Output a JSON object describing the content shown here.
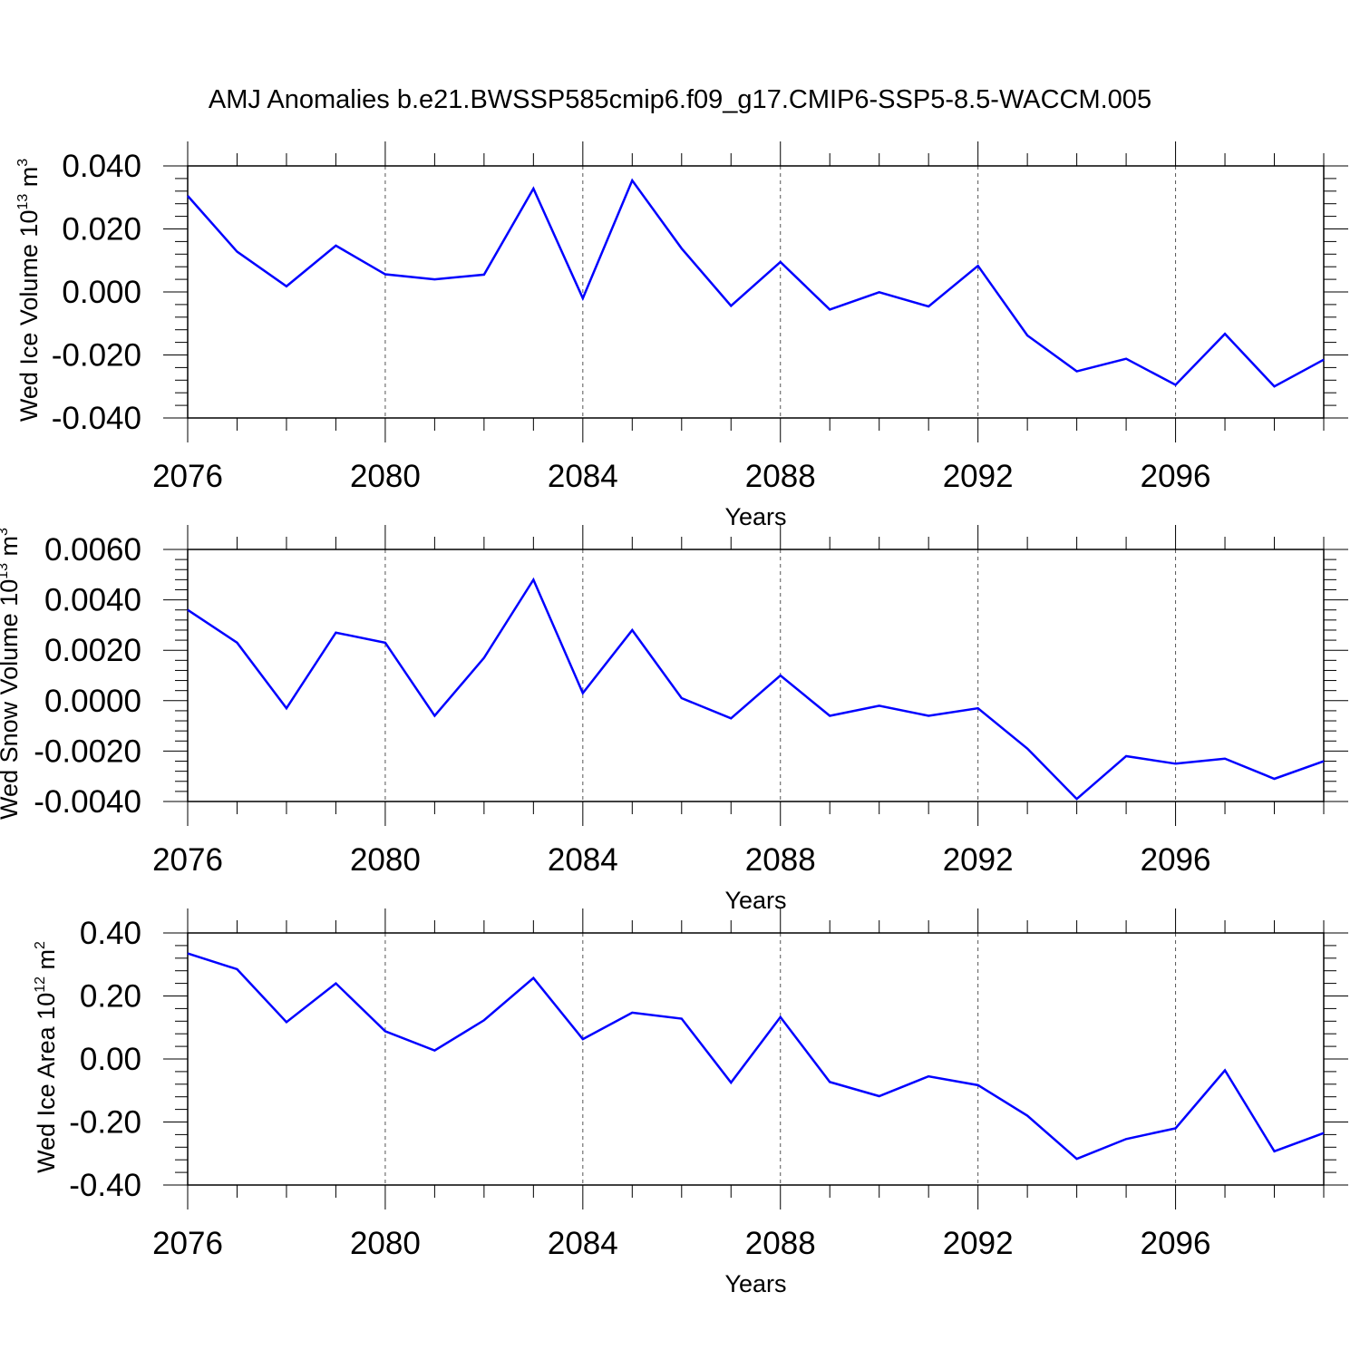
{
  "title": "AMJ Anomalies b.e21.BWSSP585cmip6.f09_g17.CMIP6-SSP5-8.5-WACCM.005",
  "chart_data": [
    {
      "type": "line",
      "xlabel": "Years",
      "ylabel_text": "Wed Ice Volume 10",
      "ylabel_exp": "13",
      "ylabel_unit": " m",
      "ylabel_unit_exp": "3",
      "x": [
        2076,
        2077,
        2078,
        2079,
        2080,
        2081,
        2082,
        2083,
        2084,
        2085,
        2086,
        2087,
        2088,
        2089,
        2090,
        2091,
        2092,
        2093,
        2094,
        2095,
        2096,
        2097,
        2098,
        2099
      ],
      "series": [
        {
          "color": "#0000ff",
          "values": [
            0.0305,
            0.0128,
            0.0018,
            0.0147,
            0.0056,
            0.004,
            0.0055,
            0.0328,
            -0.002,
            0.0354,
            0.0138,
            -0.0044,
            0.0095,
            -0.0056,
            -0.0001,
            -0.0046,
            0.0083,
            -0.0138,
            -0.0252,
            -0.0212,
            -0.0295,
            -0.0133,
            -0.03,
            -0.0215
          ]
        }
      ],
      "xlim": [
        2076,
        2099
      ],
      "ylim": [
        -0.04,
        0.04
      ],
      "xticks": [
        "2076",
        "2080",
        "2084",
        "2088",
        "2092",
        "2096"
      ],
      "yticks": [
        "0.040",
        "0.020",
        "0.000",
        "-0.020",
        "-0.040"
      ],
      "grid": "dashed vertical at major x ticks"
    },
    {
      "type": "line",
      "xlabel": "Years",
      "ylabel_text": "Wed Snow Volume 10",
      "ylabel_exp": "13",
      "ylabel_unit": " m",
      "ylabel_unit_exp": "3",
      "x": [
        2076,
        2077,
        2078,
        2079,
        2080,
        2081,
        2082,
        2083,
        2084,
        2085,
        2086,
        2087,
        2088,
        2089,
        2090,
        2091,
        2092,
        2093,
        2094,
        2095,
        2096,
        2097,
        2098,
        2099
      ],
      "series": [
        {
          "color": "#0000ff",
          "values": [
            0.0036,
            0.0023,
            -0.0003,
            0.0027,
            0.0023,
            -0.0006,
            0.0017,
            0.0048,
            0.0003,
            0.0028,
            0.0001,
            -0.0007,
            0.001,
            -0.0006,
            -0.0002,
            -0.0006,
            -0.0003,
            -0.0019,
            -0.0039,
            -0.0022,
            -0.0025,
            -0.0023,
            -0.0031,
            -0.0024
          ]
        }
      ],
      "xlim": [
        2076,
        2099
      ],
      "ylim": [
        -0.004,
        0.006
      ],
      "xticks": [
        "2076",
        "2080",
        "2084",
        "2088",
        "2092",
        "2096"
      ],
      "yticks": [
        "0.0060",
        "0.0040",
        "0.0020",
        "0.0000",
        "-0.0020",
        "-0.0040"
      ],
      "grid": "dashed vertical at major x ticks"
    },
    {
      "type": "line",
      "xlabel": "Years",
      "ylabel_text": "Wed Ice Area 10",
      "ylabel_exp": "12",
      "ylabel_unit": " m",
      "ylabel_unit_exp": "2",
      "x": [
        2076,
        2077,
        2078,
        2079,
        2080,
        2081,
        2082,
        2083,
        2084,
        2085,
        2086,
        2087,
        2088,
        2089,
        2090,
        2091,
        2092,
        2093,
        2094,
        2095,
        2096,
        2097,
        2098,
        2099
      ],
      "series": [
        {
          "color": "#0000ff",
          "values": [
            0.335,
            0.285,
            0.117,
            0.24,
            0.088,
            0.027,
            0.123,
            0.257,
            0.063,
            0.147,
            0.128,
            -0.075,
            0.133,
            -0.073,
            -0.118,
            -0.055,
            -0.083,
            -0.18,
            -0.317,
            -0.254,
            -0.22,
            -0.036,
            -0.293,
            -0.235
          ]
        }
      ],
      "xlim": [
        2076,
        2099
      ],
      "ylim": [
        -0.4,
        0.4
      ],
      "xticks": [
        "2076",
        "2080",
        "2084",
        "2088",
        "2092",
        "2096"
      ],
      "yticks": [
        "0.40",
        "0.20",
        "0.00",
        "-0.20",
        "-0.40"
      ],
      "grid": "dashed vertical at major x ticks"
    }
  ]
}
